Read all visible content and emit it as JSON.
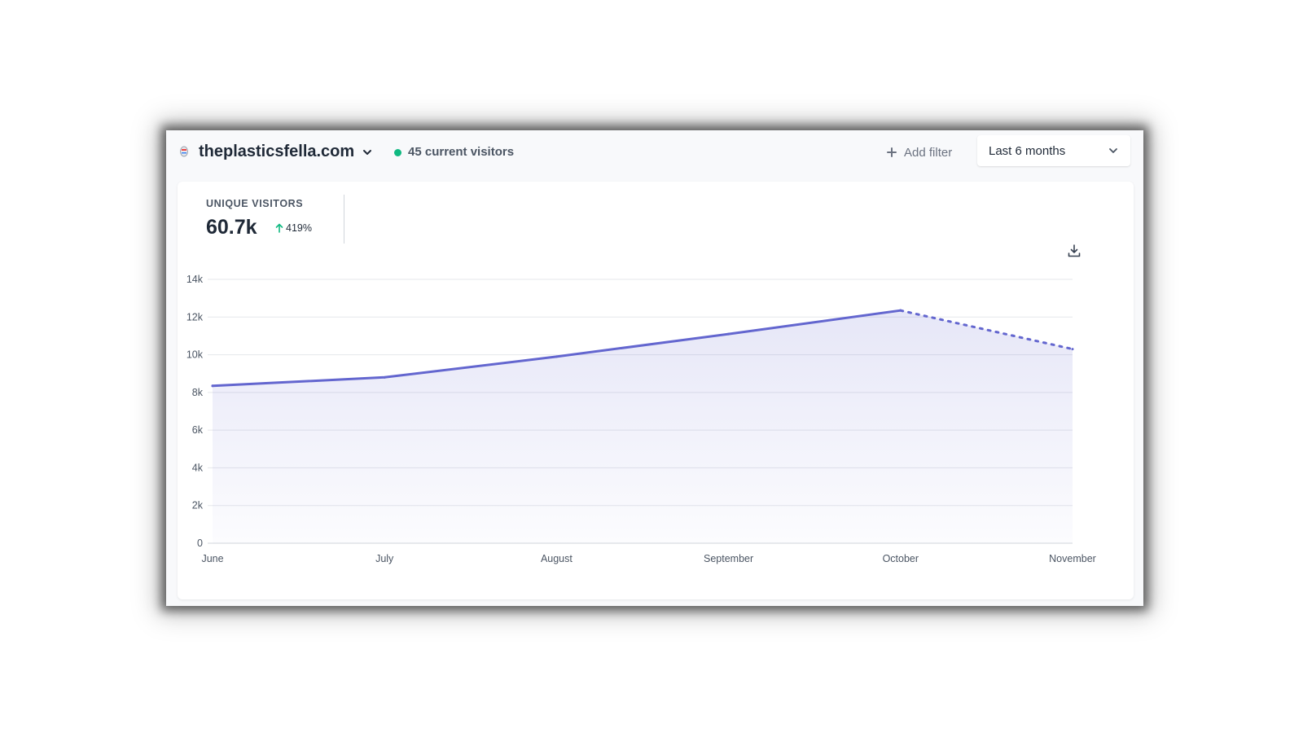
{
  "header": {
    "site_name": "theplasticsfella.com",
    "current_visitors": "45 current visitors",
    "add_filter_label": "Add filter",
    "period_label": "Last 6 months"
  },
  "metric": {
    "label": "UNIQUE VISITORS",
    "value": "60.7k",
    "change": "419%",
    "change_direction": "up"
  },
  "colors": {
    "accent": "#6366cf",
    "live": "#10b981",
    "increase": "#10b981"
  },
  "icons": [
    "site-favicon-icon",
    "chevron-down-icon",
    "plus-icon",
    "arrow-up-icon",
    "download-icon"
  ],
  "chart_data": {
    "type": "area",
    "categories": [
      "June",
      "July",
      "August",
      "September",
      "October",
      "November"
    ],
    "values": [
      8350,
      8800,
      9900,
      11100,
      12350,
      10300
    ],
    "ylim": [
      0,
      14000
    ],
    "yticks": [
      0,
      2000,
      4000,
      6000,
      8000,
      10000,
      12000,
      14000
    ],
    "ytick_labels": [
      "0",
      "2k",
      "4k",
      "6k",
      "8k",
      "10k",
      "12k",
      "14k"
    ],
    "incomplete_last_period": true,
    "grid": true
  }
}
